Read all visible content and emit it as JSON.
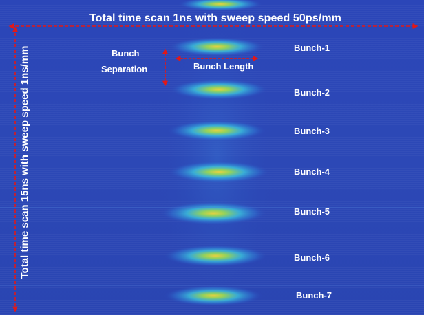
{
  "image": {
    "description_labels": {
      "top_title": "Total time scan 1ns with sweep speed 50ps/mm",
      "side_title": "Total time scan 15ns with  sweep speed 1ns/mm",
      "separation_line1": "Bunch",
      "separation_line2": "Separation",
      "length_label": "Bunch Length"
    },
    "bunches": [
      "Bunch-1",
      "Bunch-2",
      "Bunch-3",
      "Bunch-4",
      "Bunch-5",
      "Bunch-6",
      "Bunch-7"
    ],
    "colors": {
      "background": "#2b46b8",
      "arrow": "#e01818",
      "text": "#ffffff",
      "glow_cyan": "#38c8e8",
      "glow_green": "#8ee05a",
      "glow_yellow": "#f0e040"
    }
  }
}
